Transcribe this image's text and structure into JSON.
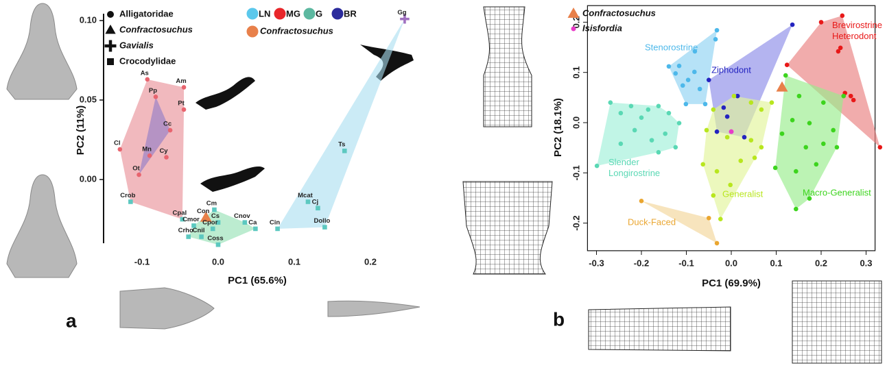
{
  "chart_data": [
    {
      "type": "scatter",
      "panel": "a",
      "xlabel": "PC1 (65.6%)",
      "ylabel": "PC2 (11%)",
      "xlim": [
        -0.15,
        0.25
      ],
      "ylim": [
        -0.045,
        0.104
      ],
      "xticks": [
        -0.1,
        {
          "value": 0,
          "label": "0.0"
        },
        0.1,
        0.2
      ],
      "yticks": [
        {
          "value": 0,
          "label": "0.00"
        },
        0.05,
        {
          "value": 0.1,
          "label": "0.10"
        }
      ],
      "groups": [
        {
          "name": "LN",
          "color": "#5bc8ec",
          "hull_color": "#a9def0"
        },
        {
          "name": "MG",
          "color": "#e8262a",
          "hull_color": "#e78a93"
        },
        {
          "name": "G",
          "color": "#5cb8a0",
          "hull_color": "#8fe0b0"
        },
        {
          "name": "BR",
          "color": "#2b2b9c",
          "hull_color": "#8e7ac8"
        }
      ],
      "highlight": {
        "name": "Confractosuchus",
        "color": "#e8804a"
      },
      "series": [
        {
          "name": "Alligatoridae",
          "shape": "circle",
          "color": "#e8646e",
          "italic": false,
          "labels": [
            "As",
            "Pp",
            "Am",
            "Pt",
            "Cc",
            "Cl",
            "Mn",
            "Cy",
            "Ot"
          ],
          "x": [
            -0.093,
            -0.082,
            -0.045,
            -0.045,
            -0.063,
            -0.129,
            -0.09,
            -0.068,
            -0.104
          ],
          "values": [
            0.063,
            0.052,
            0.058,
            0.044,
            0.031,
            0.019,
            0.015,
            0.014,
            0.003
          ],
          "group": [
            "MG",
            "BR",
            "MG",
            "MG",
            "BR",
            "MG",
            "BR",
            "MG",
            "BR"
          ]
        },
        {
          "name": "Confractosuchus",
          "shape": "triangle",
          "color": "#e8804a",
          "italic": true,
          "labels": [
            "Con"
          ],
          "x": [
            -0.016
          ],
          "values": [
            -0.024
          ],
          "group": [
            "G"
          ]
        },
        {
          "name": "Gavialis",
          "shape": "plus",
          "color": "#a070c0",
          "italic": true,
          "labels": [
            "Gg"
          ],
          "x": [
            0.245
          ],
          "values": [
            0.101
          ],
          "group": [
            "LN"
          ]
        },
        {
          "name": "Crocodylidae",
          "shape": "square",
          "color": "#5cc8c0",
          "italic": false,
          "labels": [
            "Crob",
            "Cpal",
            "Cm",
            "Cs",
            "Cmor",
            "Cpor",
            "Cnov",
            "Ca",
            "Crho",
            "Cnil",
            "Coss",
            "Ts",
            "Mcat",
            "Cj",
            "Cin",
            "Dollo"
          ],
          "x": [
            -0.115,
            -0.047,
            -0.005,
            0.0,
            -0.032,
            -0.007,
            0.035,
            0.049,
            -0.039,
            -0.022,
            0.0,
            0.166,
            0.118,
            0.131,
            0.078,
            0.14
          ],
          "values": [
            -0.014,
            -0.025,
            -0.019,
            -0.027,
            -0.029,
            -0.031,
            -0.027,
            -0.031,
            -0.036,
            -0.036,
            -0.041,
            0.018,
            -0.014,
            -0.018,
            -0.031,
            -0.03
          ],
          "group": [
            "MG",
            "MG",
            "G",
            "G",
            "G",
            "G",
            "G",
            "G",
            "G",
            "G",
            "G",
            "LN",
            "LN",
            "LN",
            "LN",
            "LN"
          ]
        }
      ]
    },
    {
      "type": "scatter",
      "panel": "b",
      "xlabel": "PC1 (69.9%)",
      "ylabel": "PC2 (18.1%)",
      "xlim": [
        -0.32,
        0.32
      ],
      "ylim": [
        -0.255,
        0.233
      ],
      "xticks": [
        -0.3,
        -0.2,
        -0.1,
        {
          "value": 0,
          "label": "0.0"
        },
        0.1,
        0.2,
        0.3
      ],
      "yticks": [
        -0.2,
        -0.1,
        {
          "value": 0,
          "label": "0.0"
        },
        0.1,
        0.2
      ],
      "series": [
        {
          "name": "Stenorostrine",
          "color": "#4db8ea",
          "hull_color": "#8fd3f2",
          "x": [
            -0.032,
            -0.035,
            -0.081,
            -0.116,
            -0.139,
            -0.124,
            -0.096,
            -0.108,
            -0.07,
            -0.101,
            -0.058,
            -0.082
          ],
          "values": [
            0.184,
            0.166,
            0.142,
            0.113,
            0.112,
            0.098,
            0.085,
            0.074,
            0.067,
            0.037,
            0.037,
            0.101
          ]
        },
        {
          "name": "Ziphodont",
          "color": "#2424c0",
          "hull_color": "#8c8ce8",
          "x": [
            0.136,
            -0.05,
            0.014,
            -0.017,
            -0.032,
            0.029,
            -0.009
          ],
          "values": [
            0.195,
            0.085,
            0.053,
            0.03,
            -0.018,
            -0.029,
            0.012
          ]
        },
        {
          "name": "Brevirostrine Heterodont",
          "color": "#e81818",
          "hull_color": "#ea8080",
          "x": [
            0.2,
            0.247,
            0.243,
            0.238,
            0.124,
            0.253,
            0.266,
            0.272,
            0.331
          ],
          "values": [
            0.2,
            0.213,
            0.149,
            0.142,
            0.115,
            0.059,
            0.053,
            0.045,
            -0.049
          ]
        },
        {
          "name": "Slender Longirostrine",
          "color": "#5ad8b4",
          "hull_color": "#9ff0d8",
          "x": [
            -0.299,
            -0.269,
            -0.246,
            -0.223,
            -0.2,
            -0.185,
            -0.162,
            -0.139,
            -0.116,
            -0.147,
            -0.177,
            -0.215,
            -0.246,
            -0.124,
            -0.162
          ],
          "values": [
            -0.086,
            0.04,
            0.019,
            0.033,
            0.01,
            0.026,
            0.033,
            0.019,
            -0.001,
            -0.022,
            -0.035,
            -0.015,
            -0.042,
            -0.049,
            -0.059
          ]
        },
        {
          "name": "Generalist",
          "color": "#b8e61e",
          "hull_color": "#e2f59a",
          "x": [
            -0.04,
            0.006,
            0.044,
            0.067,
            0.09,
            -0.055,
            -0.009,
            0.044,
            0.067,
            -0.063,
            -0.032,
            -0.002,
            -0.04,
            -0.024,
            0.021,
            0.052
          ],
          "values": [
            0.026,
            0.053,
            0.04,
            0.026,
            0.04,
            -0.015,
            -0.029,
            -0.035,
            -0.049,
            -0.083,
            -0.097,
            -0.124,
            -0.145,
            -0.192,
            -0.076,
            -0.07
          ]
        },
        {
          "name": "Macro-Generalist",
          "color": "#3dd41e",
          "hull_color": "#98ec8c",
          "x": [
            0.121,
            0.151,
            0.205,
            0.25,
            0.136,
            0.174,
            0.227,
            0.113,
            0.166,
            0.205,
            0.098,
            0.144,
            0.189,
            0.144,
            0.235,
            0.174
          ],
          "values": [
            0.094,
            0.053,
            0.04,
            0.053,
            0.005,
            -0.001,
            -0.015,
            -0.022,
            -0.049,
            -0.042,
            -0.09,
            -0.097,
            -0.083,
            -0.172,
            -0.049,
            -0.151
          ]
        },
        {
          "name": "Duck-Faced",
          "color": "#eaa630",
          "hull_color": "#f2d69a",
          "x": [
            -0.2,
            -0.05,
            -0.032
          ],
          "values": [
            -0.156,
            -0.19,
            -0.24
          ]
        }
      ],
      "markers": [
        {
          "name": "Confractosuchus",
          "shape": "triangle",
          "color": "#e8804a",
          "italic": true,
          "x": [
            0.113
          ],
          "values": [
            0.07
          ]
        },
        {
          "name": "Isisfordia",
          "shape": "circle",
          "color": "#e83cc8",
          "italic": true,
          "x": [
            0.0
          ],
          "values": [
            -0.018
          ]
        }
      ]
    }
  ]
}
